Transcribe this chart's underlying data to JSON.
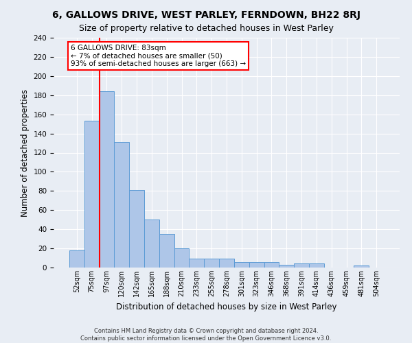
{
  "title": "6, GALLOWS DRIVE, WEST PARLEY, FERNDOWN, BH22 8RJ",
  "subtitle": "Size of property relative to detached houses in West Parley",
  "xlabel": "Distribution of detached houses by size in West Parley",
  "ylabel": "Number of detached properties",
  "footer": "Contains HM Land Registry data © Crown copyright and database right 2024.\nContains public sector information licensed under the Open Government Licence v3.0.",
  "categories": [
    "52sqm",
    "75sqm",
    "97sqm",
    "120sqm",
    "142sqm",
    "165sqm",
    "188sqm",
    "210sqm",
    "233sqm",
    "255sqm",
    "278sqm",
    "301sqm",
    "323sqm",
    "346sqm",
    "368sqm",
    "391sqm",
    "414sqm",
    "436sqm",
    "459sqm",
    "481sqm",
    "504sqm"
  ],
  "values": [
    18,
    153,
    184,
    131,
    81,
    50,
    35,
    20,
    9,
    9,
    9,
    6,
    6,
    6,
    3,
    4,
    4,
    0,
    0,
    2,
    0
  ],
  "bar_color": "#aec6e8",
  "bar_edge_color": "#5b9bd5",
  "annotation_text": "6 GALLOWS DRIVE: 83sqm\n← 7% of detached houses are smaller (50)\n93% of semi-detached houses are larger (663) →",
  "annotation_box_color": "white",
  "annotation_box_edge": "red",
  "marker_line_color": "red",
  "ylim": [
    0,
    240
  ],
  "yticks": [
    0,
    20,
    40,
    60,
    80,
    100,
    120,
    140,
    160,
    180,
    200,
    220,
    240
  ],
  "background_color": "#e8edf4",
  "plot_background": "#e8edf4",
  "grid_color": "white",
  "title_fontsize": 10,
  "subtitle_fontsize": 9,
  "xlabel_fontsize": 8.5,
  "ylabel_fontsize": 8.5
}
